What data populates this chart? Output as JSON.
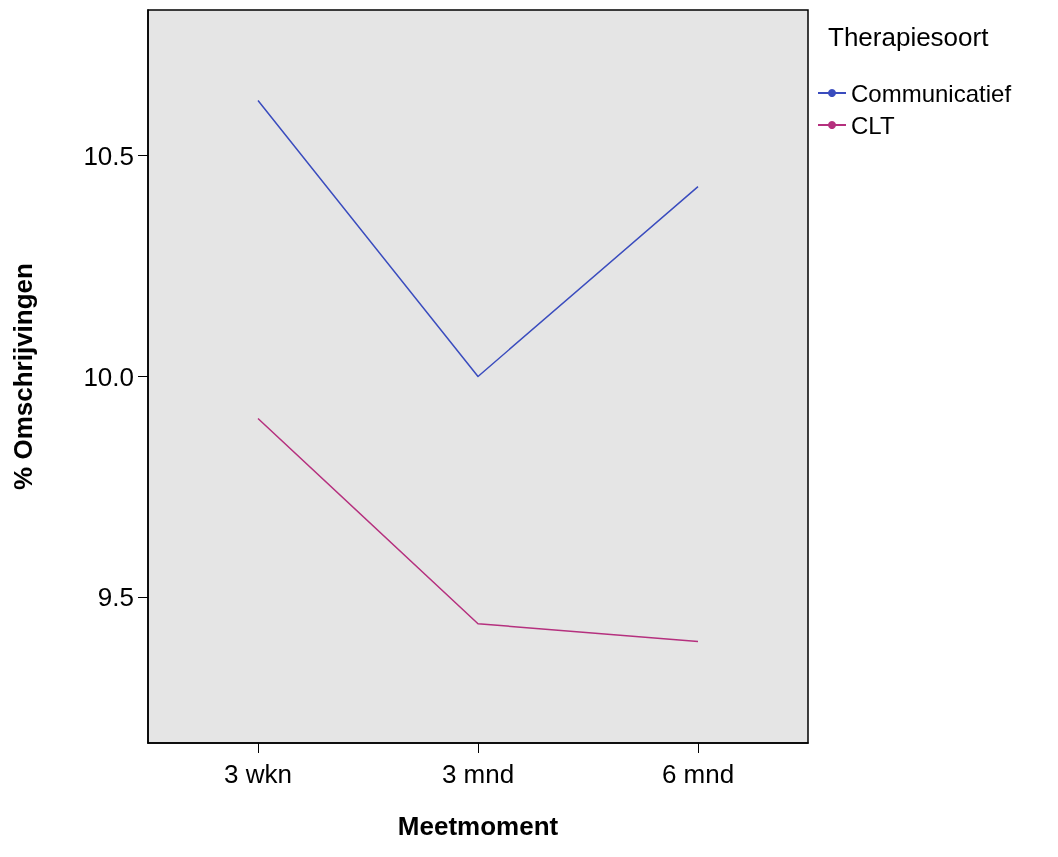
{
  "chart_data": {
    "type": "line",
    "xlabel": "Meetmoment",
    "ylabel": "% Omschrijvingen",
    "legend_title": "Therapiesoort",
    "categories": [
      "3 wkn",
      "3 mnd",
      "6 mnd"
    ],
    "series": [
      {
        "name": "Communicatief",
        "color": "#3a4cbe",
        "values": [
          10.625,
          10.0,
          10.43
        ]
      },
      {
        "name": "CLT",
        "color": "#b5307e",
        "values": [
          9.905,
          9.44,
          9.4
        ]
      }
    ],
    "ylim": [
      9.17,
      10.83
    ],
    "yticks": [
      {
        "value": 9.5,
        "label": "9.5"
      },
      {
        "value": 10.0,
        "label": "10.0"
      },
      {
        "value": 10.5,
        "label": "10.5"
      }
    ],
    "grid": false,
    "legend": "right",
    "marker": "none",
    "line_style": "solid"
  }
}
